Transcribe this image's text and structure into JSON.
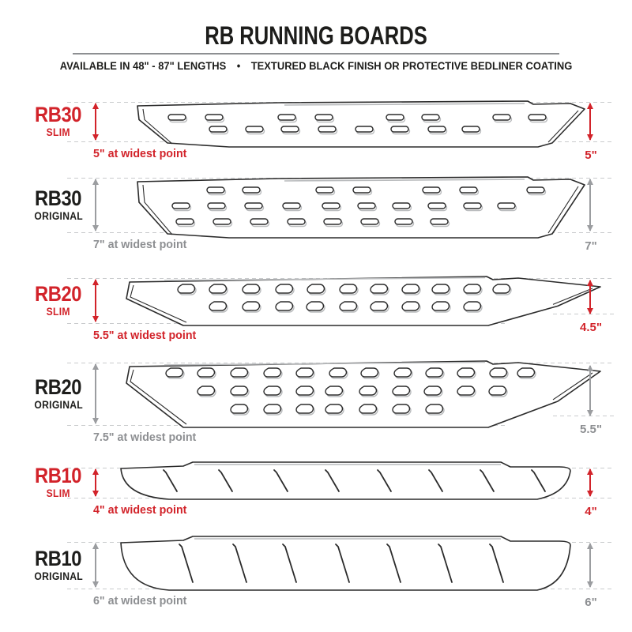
{
  "header": {
    "title": "RB RUNNING BOARDS",
    "subtitle_left": "AVAILABLE IN 48\" - 87\" LENGTHS",
    "separator": "•",
    "subtitle_right": "TEXTURED BLACK FINISH OR PROTECTIVE BEDLINER COATING"
  },
  "colors": {
    "accent_red": "#d2232a",
    "text_dark": "#1d1d1b",
    "text_gray": "#8d8f92",
    "guide_dash": "#c9cbcd"
  },
  "products": [
    {
      "model": "RB30",
      "variant": "SLIM",
      "finish": "slim",
      "widest_note": "5\" at widest point",
      "side_measure": "5\""
    },
    {
      "model": "RB30",
      "variant": "ORIGINAL",
      "finish": "original",
      "widest_note": "7\" at widest point",
      "side_measure": "7\""
    },
    {
      "model": "RB20",
      "variant": "SLIM",
      "finish": "slim",
      "widest_note": "5.5\" at widest point",
      "side_measure": "4.5\""
    },
    {
      "model": "RB20",
      "variant": "ORIGINAL",
      "finish": "original",
      "widest_note": "7.5\" at widest point",
      "side_measure": "5.5\""
    },
    {
      "model": "RB10",
      "variant": "SLIM",
      "finish": "slim",
      "widest_note": "4\" at widest point",
      "side_measure": "4\""
    },
    {
      "model": "RB10",
      "variant": "ORIGINAL",
      "finish": "original",
      "widest_note": "6\" at widest point",
      "side_measure": "6\""
    }
  ]
}
